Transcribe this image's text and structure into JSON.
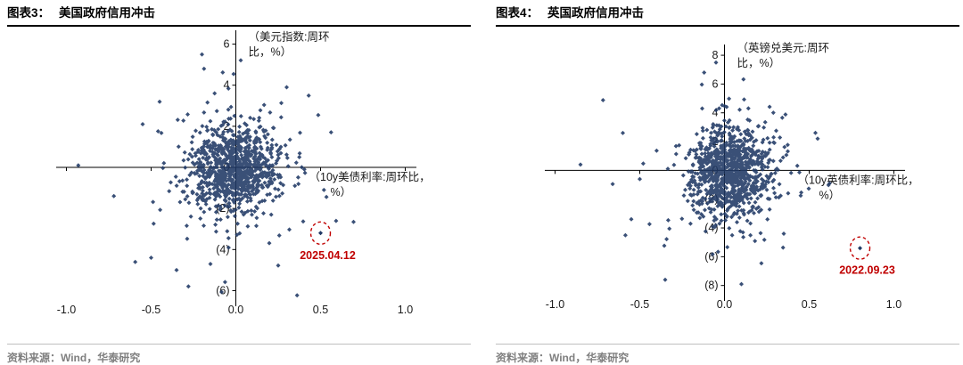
{
  "chart_data": [
    {
      "type": "scatter",
      "id": "us",
      "figure_label": "图表3：",
      "title": "美国政府信用冲击",
      "ylabel_lines": [
        "（美元指数:周环",
        "比，%）"
      ],
      "xlabel_lines": [
        "（10y美债利率:周环比，",
        "%）"
      ],
      "x_ticks": [
        {
          "v": -1.0,
          "label": "-1.0"
        },
        {
          "v": -0.5,
          "label": "-0.5"
        },
        {
          "v": 0.0,
          "label": "0.0"
        },
        {
          "v": 0.5,
          "label": "0.5"
        },
        {
          "v": 1.0,
          "label": "1.0"
        }
      ],
      "y_ticks": [
        {
          "v": 6,
          "label": "6"
        },
        {
          "v": 4,
          "label": "4"
        },
        {
          "v": 2,
          "label": "2"
        },
        {
          "v": 0,
          "label": "0"
        },
        {
          "v": -2,
          "label": "(2)"
        },
        {
          "v": -4,
          "label": "(4)"
        },
        {
          "v": -6,
          "label": "(6)"
        }
      ],
      "xlim": [
        -1.05,
        1.05
      ],
      "ylim": [
        -6.5,
        6.5
      ],
      "marker_color": "#1F3864",
      "annotation": {
        "label": "2025.04.12",
        "x": 0.5,
        "y": -3.2,
        "color": "#C00000"
      },
      "cluster": {
        "seed": 101,
        "core_n": 900,
        "cx": 0.0,
        "cy": -0.05,
        "sx": 0.125,
        "sy": 1.05,
        "out_n": 90,
        "out_sx": 0.3,
        "out_sy": 2.5
      },
      "extra_points": [
        [
          -0.93,
          0.1
        ],
        [
          -0.72,
          -1.4
        ],
        [
          -0.55,
          2.1
        ],
        [
          0.52,
          -1.1
        ],
        [
          -0.5,
          -4.4
        ],
        [
          -0.35,
          -5.0
        ],
        [
          -0.2,
          5.5
        ],
        [
          -0.28,
          -5.8
        ],
        [
          0.3,
          3.9
        ],
        [
          -0.45,
          3.2
        ],
        [
          -0.15,
          -4.7
        ]
      ],
      "source": "资料来源：Wind，华泰研究"
    },
    {
      "type": "scatter",
      "id": "uk",
      "figure_label": "图表4：",
      "title": "英国政府信用冲击",
      "ylabel_lines": [
        "（英镑兑美元:周环",
        "比，%）"
      ],
      "xlabel_lines": [
        "（10y英债利率:周环比，",
        "%）"
      ],
      "x_ticks": [
        {
          "v": -1.0,
          "label": "-1.0"
        },
        {
          "v": -0.5,
          "label": "-0.5"
        },
        {
          "v": 0.0,
          "label": "0.0"
        },
        {
          "v": 0.5,
          "label": "0.5"
        },
        {
          "v": 1.0,
          "label": "1.0"
        }
      ],
      "y_ticks": [
        {
          "v": 8,
          "label": "8"
        },
        {
          "v": 6,
          "label": "6"
        },
        {
          "v": 4,
          "label": "4"
        },
        {
          "v": 2,
          "label": "2"
        },
        {
          "v": 0,
          "label": "0"
        },
        {
          "v": -2,
          "label": "(2)"
        },
        {
          "v": -4,
          "label": "(4)"
        },
        {
          "v": -6,
          "label": "(6)"
        },
        {
          "v": -8,
          "label": "(8)"
        }
      ],
      "xlim": [
        -1.05,
        1.05
      ],
      "ylim": [
        -8.7,
        8.5
      ],
      "marker_color": "#1F3864",
      "annotation": {
        "label": "2022.09.23",
        "x": 0.8,
        "y": -5.4,
        "color": "#C00000"
      },
      "cluster": {
        "seed": 202,
        "core_n": 920,
        "cx": 0.03,
        "cy": -0.1,
        "sx": 0.12,
        "sy": 1.5,
        "out_n": 90,
        "out_sx": 0.28,
        "out_sy": 3.2
      },
      "extra_points": [
        [
          -0.85,
          0.4
        ],
        [
          -0.6,
          2.6
        ],
        [
          -0.5,
          -0.6
        ],
        [
          0.62,
          -0.9
        ],
        [
          0.55,
          2.2
        ],
        [
          -0.35,
          -7.6
        ],
        [
          -0.05,
          7.5
        ],
        [
          -0.12,
          6.8
        ],
        [
          0.1,
          -7.9
        ],
        [
          0.35,
          -4.4
        ],
        [
          -0.55,
          -3.4
        ]
      ],
      "source": "资料来源：Wind，华泰研究"
    }
  ]
}
